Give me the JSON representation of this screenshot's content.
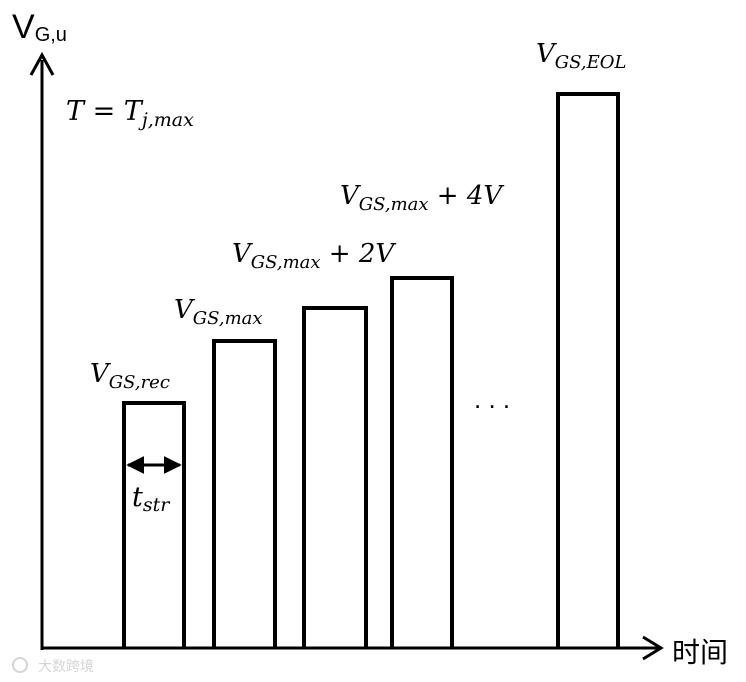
{
  "axes": {
    "y_label_main": "V",
    "y_label_sub": "G,u",
    "x_label": "时间"
  },
  "condition": {
    "left": "T = T",
    "sub": "j,max"
  },
  "pulses": [
    {
      "main": "V",
      "sub": "GS,rec",
      "suffix": "",
      "level": 1
    },
    {
      "main": "V",
      "sub": "GS,max",
      "suffix": "",
      "level": 2
    },
    {
      "main": "V",
      "sub": "GS,max",
      "suffix": " + 2V",
      "level": 3
    },
    {
      "main": "V",
      "sub": "GS,max",
      "suffix": " + 4V",
      "level": 4
    },
    {
      "main": "V",
      "sub": "GS,EOL",
      "suffix": "",
      "level": 5
    }
  ],
  "duration_label": {
    "main": "t",
    "sub": "str"
  },
  "ellipsis": ". . .",
  "watermark": "大数跨境"
}
